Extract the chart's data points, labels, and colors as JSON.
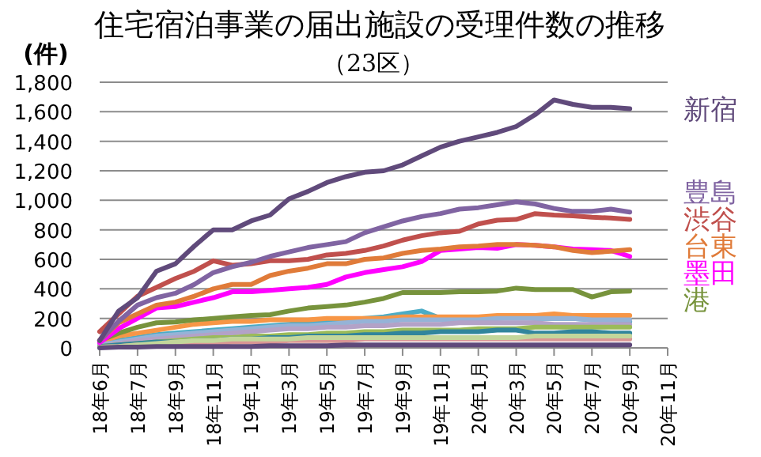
{
  "chart_data": {
    "type": "line",
    "title": "住宅宿泊事業の届出施設の受理件数の推移",
    "subtitle": "（23区）",
    "ylabel": "(件)",
    "categories": [
      "18年6月",
      null,
      "18年7月",
      null,
      "18年9月",
      null,
      "18年11月",
      null,
      "19年1月",
      null,
      "19年3月",
      null,
      "19年5月",
      null,
      "19年7月",
      null,
      "19年9月",
      null,
      "19年11月",
      null,
      "20年1月",
      null,
      "20年3月",
      null,
      "20年5月",
      null,
      "20年7月",
      null,
      "20年9月",
      null,
      "20年11月"
    ],
    "ylim": [
      0,
      1800
    ],
    "yticks": [
      {
        "value": 0,
        "label": "0"
      },
      {
        "value": 200,
        "label": "200"
      },
      {
        "value": 400,
        "label": "400"
      },
      {
        "value": 600,
        "label": "600"
      },
      {
        "value": 800,
        "label": "800"
      },
      {
        "value": 1000,
        "label": "1,000"
      },
      {
        "value": 1200,
        "label": "1,200"
      },
      {
        "value": 1400,
        "label": "1,400"
      },
      {
        "value": 1600,
        "label": "1,600"
      },
      {
        "value": 1800,
        "label": "1,800"
      }
    ],
    "grid": "y",
    "series": [
      {
        "color": "#4bacc6",
        "values": [
          30,
          50,
          70,
          90,
          100,
          110,
          120,
          130,
          140,
          150,
          160,
          170,
          180,
          190,
          200,
          210,
          230,
          250,
          200,
          200,
          200,
          200,
          210,
          200,
          200,
          200,
          190,
          190,
          180,
          null,
          null
        ]
      },
      {
        "color": "#f79646",
        "values": [
          40,
          80,
          100,
          120,
          140,
          160,
          170,
          180,
          180,
          190,
          190,
          190,
          200,
          200,
          200,
          200,
          210,
          210,
          210,
          210,
          210,
          220,
          220,
          220,
          230,
          220,
          220,
          220,
          220,
          null,
          null
        ]
      },
      {
        "color": "#95b3d7",
        "values": [
          20,
          40,
          60,
          80,
          90,
          100,
          110,
          120,
          130,
          140,
          150,
          150,
          160,
          170,
          180,
          180,
          190,
          190,
          190,
          190,
          190,
          200,
          200,
          200,
          200,
          200,
          190,
          190,
          190,
          null,
          null
        ]
      },
      {
        "color": "#b3a2c7",
        "values": [
          10,
          30,
          50,
          60,
          70,
          80,
          90,
          100,
          110,
          120,
          130,
          130,
          140,
          140,
          150,
          150,
          160,
          160,
          160,
          170,
          170,
          170,
          170,
          170,
          160,
          160,
          160,
          160,
          160,
          null,
          null
        ]
      },
      {
        "color": "#9bbb59",
        "values": [
          10,
          20,
          30,
          40,
          50,
          60,
          70,
          70,
          80,
          80,
          90,
          90,
          100,
          100,
          110,
          110,
          120,
          120,
          120,
          120,
          130,
          130,
          130,
          140,
          140,
          140,
          140,
          140,
          140,
          null,
          null
        ]
      },
      {
        "color": "#31859c",
        "values": [
          10,
          20,
          30,
          40,
          40,
          50,
          50,
          60,
          60,
          70,
          70,
          80,
          80,
          80,
          90,
          90,
          100,
          100,
          110,
          110,
          110,
          120,
          120,
          100,
          100,
          110,
          110,
          100,
          100,
          null,
          null
        ]
      },
      {
        "color": "#d99694",
        "values": [
          5,
          10,
          20,
          20,
          30,
          30,
          30,
          40,
          40,
          40,
          50,
          50,
          50,
          50,
          60,
          60,
          60,
          60,
          60,
          60,
          60,
          60,
          60,
          60,
          60,
          60,
          60,
          60,
          60,
          null,
          null
        ]
      },
      {
        "color": "#c3d69b",
        "values": [
          5,
          10,
          20,
          30,
          40,
          50,
          50,
          60,
          60,
          60,
          60,
          70,
          70,
          70,
          70,
          70,
          70,
          70,
          70,
          70,
          70,
          70,
          70,
          80,
          80,
          80,
          80,
          80,
          80,
          null,
          null
        ]
      },
      {
        "color": "#5f497a",
        "values": [
          0,
          5,
          5,
          10,
          10,
          10,
          10,
          10,
          10,
          15,
          15,
          15,
          15,
          20,
          20,
          20,
          20,
          20,
          20,
          20,
          20,
          20,
          20,
          20,
          20,
          20,
          20,
          20,
          20,
          null,
          null
        ]
      },
      {
        "name": "港",
        "color": "#77933c",
        "values": [
          50,
          100,
          140,
          170,
          175,
          190,
          200,
          210,
          220,
          225,
          250,
          270,
          280,
          290,
          310,
          335,
          375,
          375,
          375,
          380,
          380,
          385,
          405,
          395,
          395,
          395,
          345,
          380,
          385,
          null,
          null
        ]
      },
      {
        "name": "墨田",
        "color": "#ff00ff",
        "values": [
          35,
          130,
          200,
          270,
          280,
          310,
          340,
          380,
          380,
          390,
          400,
          410,
          430,
          480,
          510,
          530,
          550,
          585,
          660,
          670,
          680,
          675,
          700,
          695,
          685,
          670,
          665,
          660,
          620,
          null,
          null
        ]
      },
      {
        "name": "台東",
        "color": "#e07b39",
        "values": [
          50,
          170,
          230,
          290,
          310,
          350,
          400,
          430,
          430,
          490,
          520,
          540,
          570,
          570,
          600,
          610,
          640,
          660,
          670,
          685,
          690,
          700,
          700,
          695,
          685,
          660,
          645,
          655,
          665,
          null,
          null
        ]
      },
      {
        "name": "渋谷",
        "color": "#c0504d",
        "values": [
          110,
          230,
          350,
          410,
          470,
          520,
          590,
          560,
          570,
          590,
          590,
          600,
          630,
          640,
          660,
          690,
          730,
          760,
          780,
          790,
          840,
          865,
          870,
          910,
          900,
          895,
          885,
          880,
          870,
          null,
          null
        ]
      },
      {
        "name": "豊島",
        "color": "#8064a2",
        "values": [
          50,
          180,
          290,
          340,
          370,
          430,
          510,
          550,
          580,
          620,
          650,
          680,
          700,
          720,
          780,
          820,
          860,
          890,
          910,
          940,
          950,
          970,
          990,
          975,
          945,
          925,
          925,
          940,
          920,
          null,
          null
        ]
      },
      {
        "name": "新宿",
        "color": "#604a7b",
        "values": [
          50,
          250,
          340,
          520,
          570,
          690,
          800,
          800,
          860,
          900,
          1010,
          1060,
          1120,
          1160,
          1190,
          1200,
          1240,
          1300,
          1360,
          1400,
          1430,
          1460,
          1500,
          1580,
          1680,
          1650,
          1630,
          1630,
          1620,
          null,
          null
        ]
      }
    ]
  }
}
